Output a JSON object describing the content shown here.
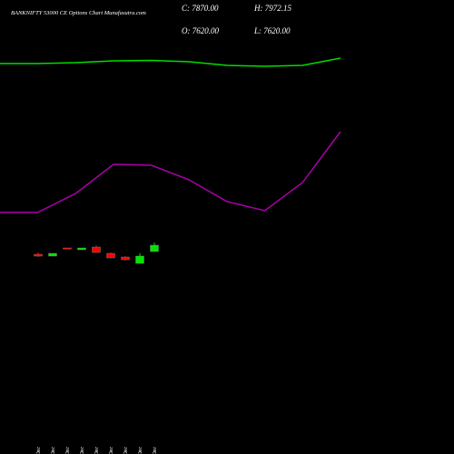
{
  "chart_data": {
    "type": "candlestick",
    "title": "BANKNIFTY 53000 CE Options Chart Munafasutra.com",
    "ohlc_texts": [
      "C: 7870.00",
      "H: 7972.15",
      "O: 7620.00",
      "L: 7620.00"
    ],
    "categories": [
      "18 Dec",
      "19 Dec",
      "22 Dec",
      "23 Dec",
      "24 Dec",
      "26 Dec",
      "29 Dec",
      "30 Dec",
      "31 Dec"
    ],
    "open": [
      7513,
      7442,
      7763,
      7691,
      7799,
      7549,
      7406,
      7156,
      7620
    ],
    "high": [
      7584,
      7549,
      7763,
      7763,
      7870,
      7584,
      7442,
      7549,
      7972.15
    ],
    "low": [
      7406,
      7442,
      7727,
      7691,
      7584,
      7370,
      7263,
      7156,
      7620
    ],
    "close": [
      7442,
      7549,
      7727,
      7763,
      7584,
      7370,
      7299,
      7442,
      7870
    ],
    "ylim": [
      7000,
      8000
    ],
    "up_color": "#00e600",
    "down_color": "#ff0000",
    "overlays": [
      {
        "color": "#00dd00",
        "ylim": [
          0,
          100
        ],
        "values": [
          50,
          50,
          55,
          65,
          67.5,
          60,
          40,
          35,
          40,
          80
        ]
      },
      {
        "color": "#aa00aa",
        "ylim": [
          0,
          100
        ],
        "values": [
          5.5,
          5.5,
          24.5,
          53.6,
          52.7,
          38.2,
          16.4,
          7.3,
          35.5,
          86.4
        ]
      }
    ]
  }
}
